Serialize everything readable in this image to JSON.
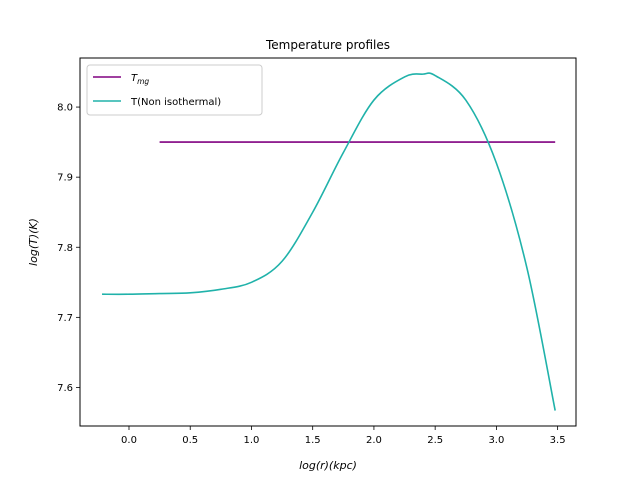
{
  "chart_data": {
    "type": "line",
    "title": "Temperature profiles",
    "xlabel": "log(r)(kpc)",
    "ylabel": "log(T)(K)",
    "xlim": [
      -0.4,
      3.65
    ],
    "ylim": [
      7.545,
      8.07
    ],
    "xticks": [
      0.0,
      0.5,
      1.0,
      1.5,
      2.0,
      2.5,
      3.0,
      3.5
    ],
    "xtick_labels": [
      "0.0",
      "0.5",
      "1.0",
      "1.5",
      "2.0",
      "2.5",
      "3.0",
      "3.5"
    ],
    "yticks": [
      7.6,
      7.7,
      7.8,
      7.9,
      8.0
    ],
    "ytick_labels": [
      "7.6",
      "7.7",
      "7.8",
      "7.9",
      "8.0"
    ],
    "grid": false,
    "legend": "top-left",
    "series": [
      {
        "name": "T_mg",
        "color": "#800080",
        "x": [
          0.25,
          3.48
        ],
        "y": [
          7.95,
          7.95
        ]
      },
      {
        "name": "T(Non isothermal)",
        "color": "#20b2aa",
        "x": [
          -0.22,
          0.0,
          0.25,
          0.5,
          0.75,
          1.0,
          1.25,
          1.5,
          1.75,
          2.0,
          2.25,
          2.4,
          2.5,
          2.75,
          3.0,
          3.25,
          3.48
        ],
        "y": [
          7.733,
          7.733,
          7.734,
          7.735,
          7.74,
          7.75,
          7.78,
          7.85,
          7.935,
          8.01,
          8.043,
          8.047,
          8.045,
          8.01,
          7.92,
          7.77,
          7.567
        ]
      }
    ]
  }
}
